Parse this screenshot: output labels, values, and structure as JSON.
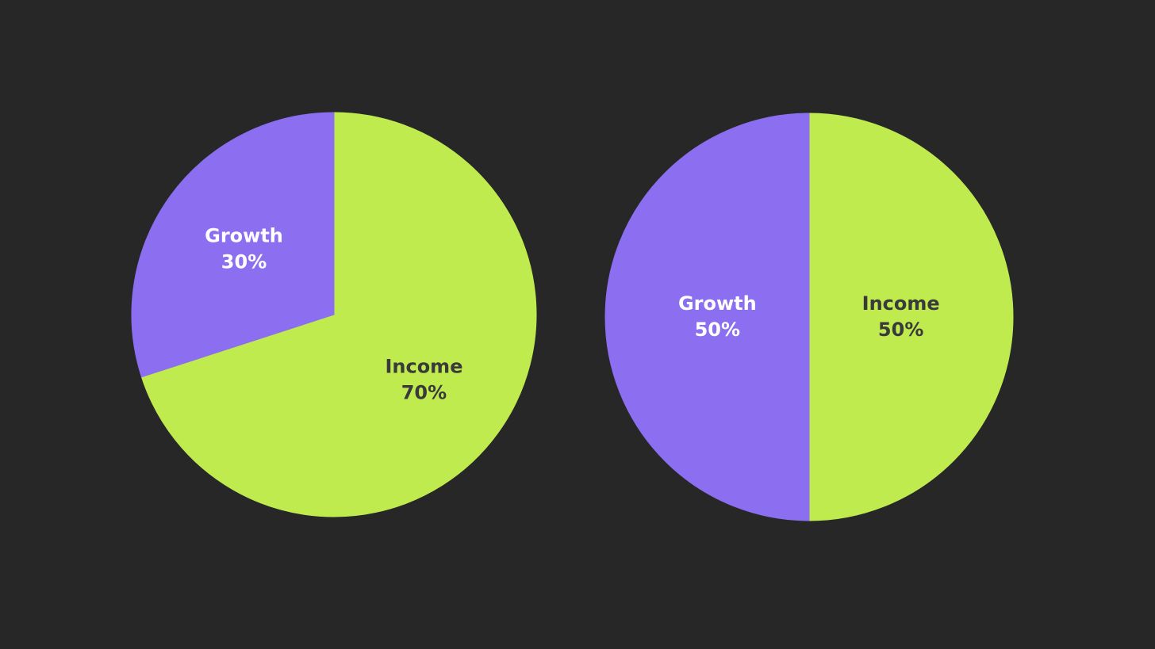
{
  "chart_data": [
    {
      "type": "pie",
      "categories": [
        "Income",
        "Growth"
      ],
      "values": [
        70,
        30
      ],
      "value_labels": [
        "70%",
        "30%"
      ],
      "colors": [
        "#bfeb4f",
        "#8b6ff0"
      ]
    },
    {
      "type": "pie",
      "categories": [
        "Income",
        "Growth"
      ],
      "values": [
        50,
        50
      ],
      "value_labels": [
        "50%",
        "50%"
      ],
      "colors": [
        "#bfeb4f",
        "#8b6ff0"
      ]
    }
  ]
}
